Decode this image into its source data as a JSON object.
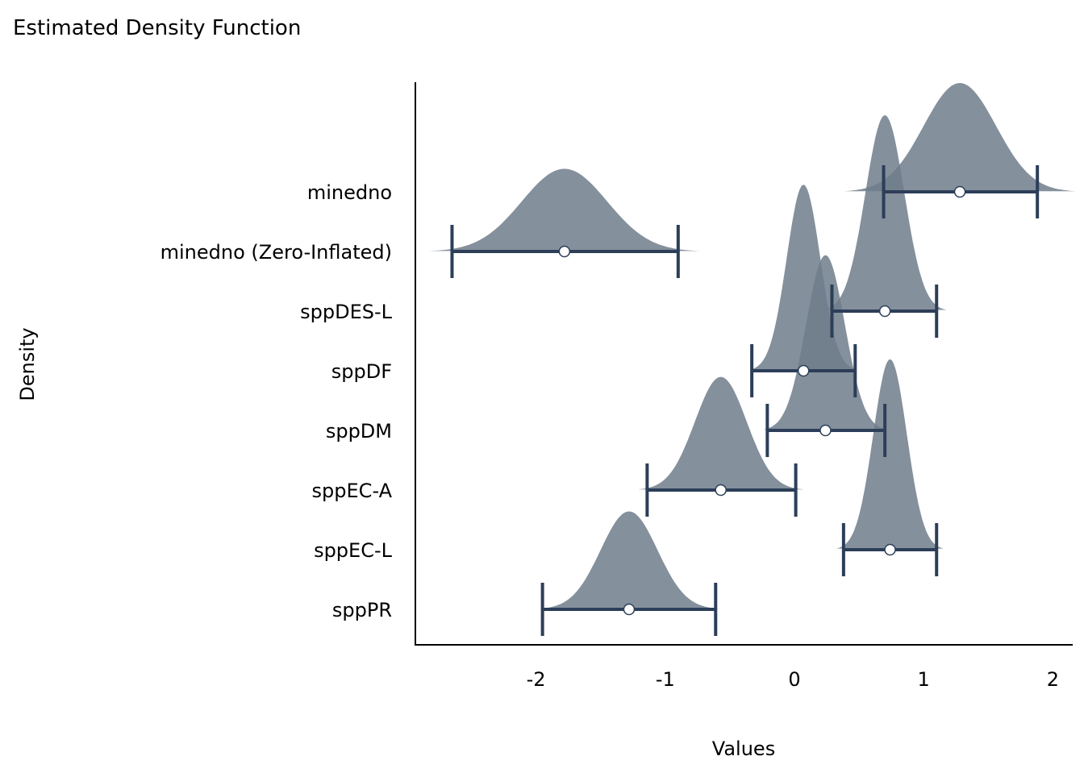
{
  "chart_data": {
    "type": "density",
    "title": "Estimated Density Function",
    "xlabel": "Values",
    "ylabel": "Density",
    "xlim": [
      -2.9,
      2.15
    ],
    "xticks": [
      -2,
      -1,
      0,
      1,
      2
    ],
    "xtick_labels": [
      "-2",
      "-1",
      "0",
      "1",
      "2"
    ],
    "grid": false,
    "fill_color": "#6f7c8b",
    "line_color": "#2c3e58",
    "series": [
      {
        "name": "minedno",
        "estimate": 1.28,
        "ci": [
          0.69,
          1.88
        ],
        "sd": 0.28,
        "peak": 1.0
      },
      {
        "name": "minedno (Zero-Inflated)",
        "estimate": -1.78,
        "ci": [
          -2.65,
          -0.9
        ],
        "sd": 0.33,
        "peak": 0.76
      },
      {
        "name": "sppDES-L",
        "estimate": 0.7,
        "ci": [
          0.29,
          1.1
        ],
        "sd": 0.15,
        "peak": 1.8
      },
      {
        "name": "sppDF",
        "estimate": 0.07,
        "ci": [
          -0.33,
          0.47
        ],
        "sd": 0.13,
        "peak": 1.71
      },
      {
        "name": "sppDM",
        "estimate": 0.24,
        "ci": [
          -0.21,
          0.7
        ],
        "sd": 0.15,
        "peak": 1.61
      },
      {
        "name": "sppEC-A",
        "estimate": -0.57,
        "ci": [
          -1.14,
          0.01
        ],
        "sd": 0.2,
        "peak": 1.04
      },
      {
        "name": "sppEC-L",
        "estimate": 0.74,
        "ci": [
          0.38,
          1.1
        ],
        "sd": 0.13,
        "peak": 1.75
      },
      {
        "name": "sppPR",
        "estimate": -1.28,
        "ci": [
          -1.95,
          -0.61
        ],
        "sd": 0.22,
        "peak": 0.9
      }
    ]
  }
}
